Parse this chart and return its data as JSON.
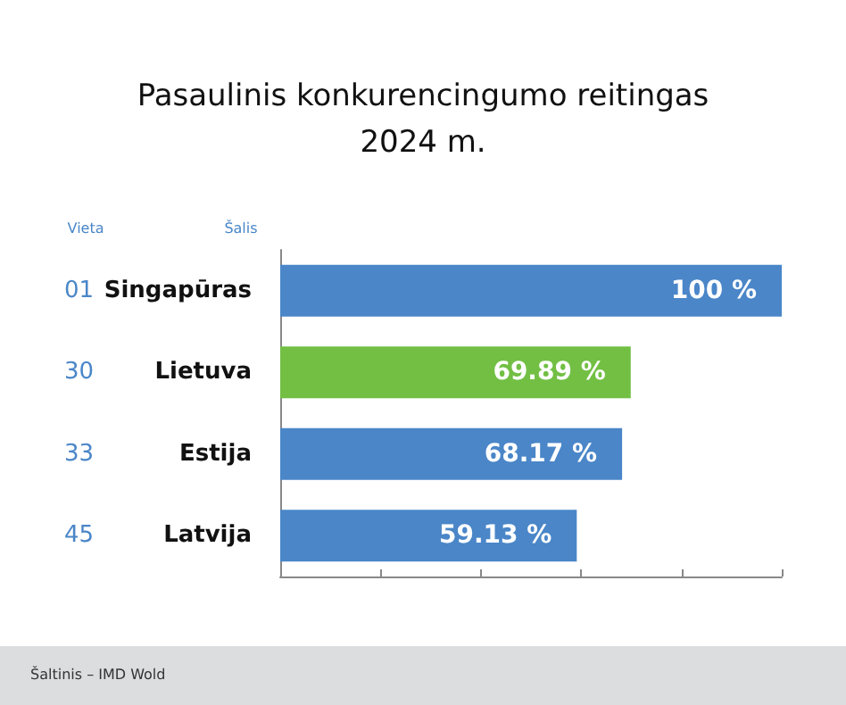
{
  "chart_data": {
    "type": "bar",
    "orientation": "horizontal",
    "title": "Pasaulinis konkurencingumo reitingas\n2024 m.",
    "categories": [
      "Singapūras",
      "Lietuva",
      "Estija",
      "Latvija"
    ],
    "values": [
      100,
      69.89,
      68.17,
      59.13
    ],
    "colors": [
      "#4a86c8",
      "#72bf44",
      "#4a86c8",
      "#4a86c8"
    ],
    "value_labels": [
      "100 %",
      "69.89 %",
      "68.17 %",
      "59.13 %"
    ],
    "xlim": [
      0,
      100
    ],
    "xticks": [
      {
        "value": 0,
        "label": null
      },
      {
        "value": 20,
        "label": null
      },
      {
        "value": 40,
        "label": null
      },
      {
        "value": 60,
        "label": null
      },
      {
        "value": 80,
        "label": null
      },
      {
        "value": 100,
        "label": null
      }
    ],
    "tick_labels": "y",
    "grid": false,
    "annotations": [
      "Vieta",
      "Šalis",
      "01",
      "30",
      "33",
      "45",
      "Šaltinis – IMD Wold"
    ]
  }
}
